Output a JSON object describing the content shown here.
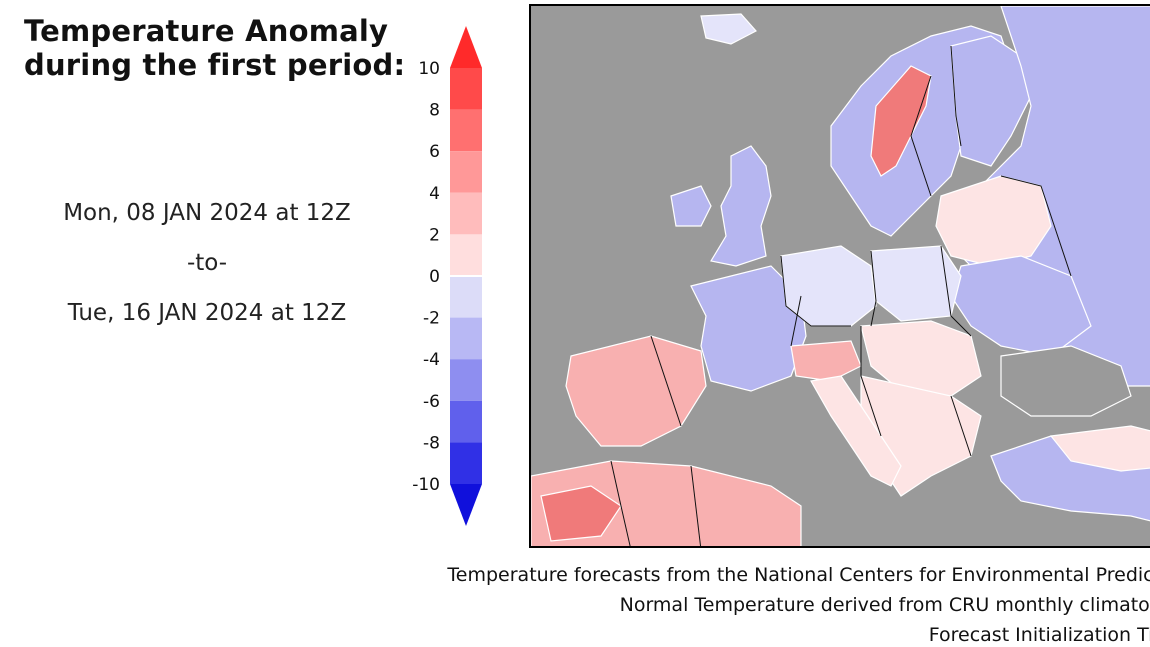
{
  "title": {
    "line1": "Temperature Anomaly",
    "line2": "during the first period:"
  },
  "period": {
    "start": "Mon, 08 JAN 2024 at 12Z",
    "separator": "-to-",
    "end": "Tue, 16 JAN 2024 at 12Z"
  },
  "legend": {
    "ticks": [
      "10",
      "8",
      "6",
      "4",
      "2",
      "0",
      "-2",
      "-4",
      "-6",
      "-8",
      "-10"
    ],
    "colors": [
      "#ff2a2a",
      "#ff4a4a",
      "#ff7070",
      "#ff9898",
      "#ffbcbc",
      "#ffdede",
      "#dcdcf8",
      "#b8b8f4",
      "#8e8ef0",
      "#6060ec",
      "#3030e6",
      "#1010dc"
    ]
  },
  "map": {
    "region": "Europe",
    "colors": {
      "ocean": "#9a9a9a",
      "warm_light": "#fde4e4",
      "warm": "#f8b0b0",
      "warm_strong": "#f07a7a",
      "cool_light": "#e4e4fa",
      "cool": "#b6b6f0",
      "cool_strong": "#7070e0"
    }
  },
  "footer": {
    "line1": "Temperature forecasts from the National Centers for Environmental Prediction",
    "line2": "Normal Temperature derived from CRU monthly climatology",
    "line3": "Forecast Initialization Time: "
  }
}
